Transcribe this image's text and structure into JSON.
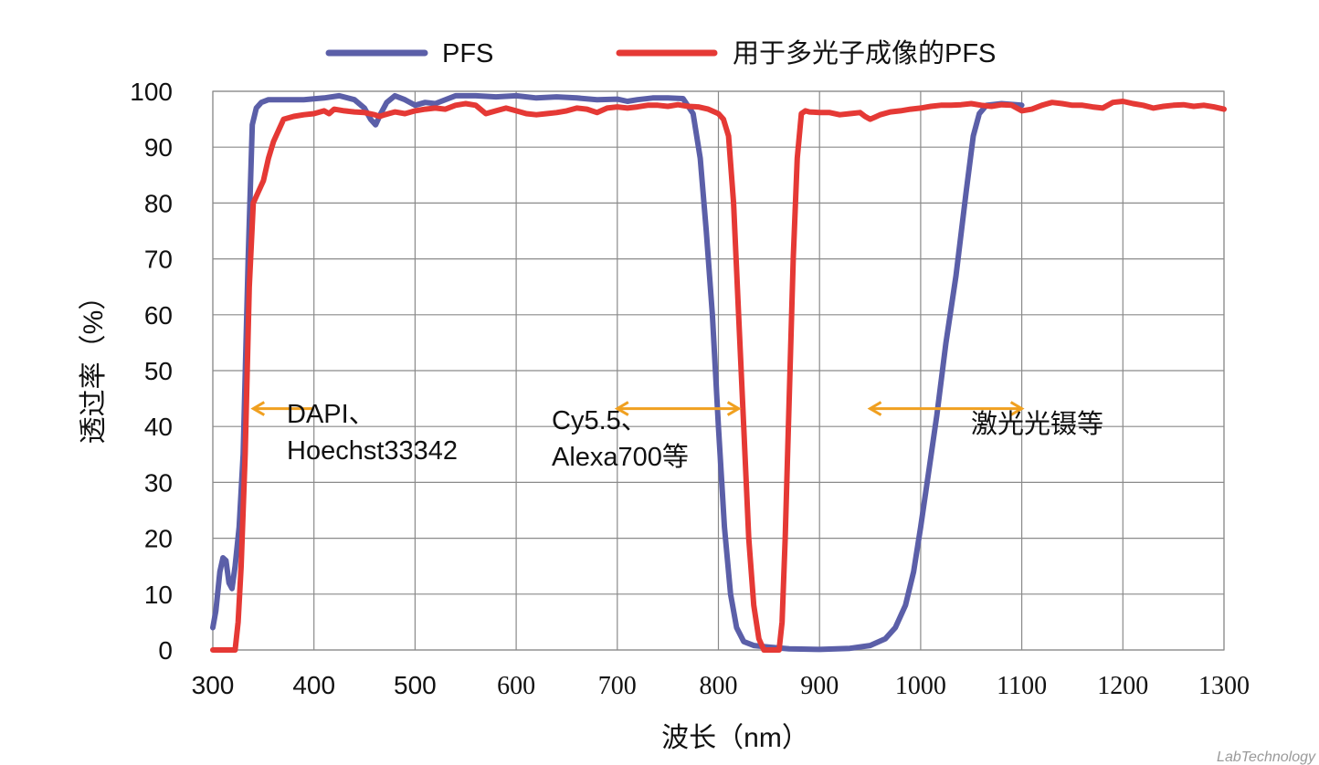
{
  "chart_data": {
    "type": "line",
    "xlabel": "波长（nm）",
    "ylabel": "透过率（%）",
    "xlim": [
      300,
      1300
    ],
    "ylim": [
      0,
      100
    ],
    "grid": true,
    "legend_position": "top",
    "x_ticks": [
      {
        "value": 300,
        "label": "300",
        "style": "sans"
      },
      {
        "value": 400,
        "label": "400",
        "style": "sans"
      },
      {
        "value": 500,
        "label": "500",
        "style": "sans"
      },
      {
        "value": 600,
        "label": "600",
        "style": "serif"
      },
      {
        "value": 700,
        "label": "700",
        "style": "serif"
      },
      {
        "value": 800,
        "label": "800",
        "style": "serif"
      },
      {
        "value": 900,
        "label": "900",
        "style": "serif"
      },
      {
        "value": 1000,
        "label": "1000",
        "style": "serif"
      },
      {
        "value": 1100,
        "label": "1100",
        "style": "serif"
      },
      {
        "value": 1200,
        "label": "1200",
        "style": "serif"
      },
      {
        "value": 1300,
        "label": "1300",
        "style": "serif"
      }
    ],
    "y_ticks": [
      0,
      10,
      20,
      30,
      40,
      50,
      60,
      70,
      80,
      90,
      100
    ],
    "series": [
      {
        "name": "PFS",
        "color": "#5b5fa8",
        "points": [
          [
            300,
            4
          ],
          [
            303,
            7
          ],
          [
            307,
            14
          ],
          [
            310,
            16.5
          ],
          [
            313,
            16
          ],
          [
            316,
            12
          ],
          [
            319,
            11
          ],
          [
            322,
            15
          ],
          [
            326,
            22
          ],
          [
            330,
            35
          ],
          [
            335,
            70
          ],
          [
            339,
            94
          ],
          [
            343,
            97
          ],
          [
            348,
            98
          ],
          [
            355,
            98.5
          ],
          [
            370,
            98.5
          ],
          [
            390,
            98.5
          ],
          [
            410,
            98.8
          ],
          [
            425,
            99.2
          ],
          [
            440,
            98.5
          ],
          [
            450,
            97
          ],
          [
            456,
            95
          ],
          [
            461,
            94
          ],
          [
            466,
            96
          ],
          [
            472,
            98
          ],
          [
            480,
            99.2
          ],
          [
            490,
            98.5
          ],
          [
            500,
            97.5
          ],
          [
            510,
            98
          ],
          [
            520,
            97.8
          ],
          [
            540,
            99.2
          ],
          [
            560,
            99.2
          ],
          [
            580,
            99
          ],
          [
            600,
            99.2
          ],
          [
            620,
            98.8
          ],
          [
            640,
            99
          ],
          [
            660,
            98.8
          ],
          [
            680,
            98.5
          ],
          [
            700,
            98.6
          ],
          [
            710,
            98.2
          ],
          [
            720,
            98.5
          ],
          [
            735,
            98.8
          ],
          [
            750,
            98.8
          ],
          [
            765,
            98.7
          ],
          [
            775,
            96
          ],
          [
            782,
            88
          ],
          [
            788,
            75
          ],
          [
            794,
            60
          ],
          [
            800,
            40
          ],
          [
            806,
            22
          ],
          [
            812,
            10
          ],
          [
            818,
            4
          ],
          [
            825,
            1.5
          ],
          [
            835,
            0.8
          ],
          [
            850,
            0.5
          ],
          [
            870,
            0.2
          ],
          [
            900,
            0.1
          ],
          [
            930,
            0.3
          ],
          [
            950,
            0.8
          ],
          [
            965,
            2
          ],
          [
            975,
            4
          ],
          [
            985,
            8
          ],
          [
            993,
            14
          ],
          [
            1000,
            22
          ],
          [
            1008,
            32
          ],
          [
            1016,
            42
          ],
          [
            1025,
            55
          ],
          [
            1035,
            67
          ],
          [
            1045,
            82
          ],
          [
            1052,
            92
          ],
          [
            1058,
            96
          ],
          [
            1065,
            97.5
          ],
          [
            1080,
            97.8
          ],
          [
            1100,
            97.5
          ]
        ]
      },
      {
        "name": "用于多光子成像的PFS",
        "color": "#e53935",
        "points": [
          [
            300,
            0
          ],
          [
            310,
            0
          ],
          [
            318,
            0
          ],
          [
            322,
            0
          ],
          [
            325,
            5
          ],
          [
            328,
            15
          ],
          [
            332,
            35
          ],
          [
            336,
            65
          ],
          [
            340,
            80
          ],
          [
            345,
            82
          ],
          [
            350,
            84
          ],
          [
            355,
            88
          ],
          [
            360,
            91
          ],
          [
            365,
            93
          ],
          [
            370,
            95
          ],
          [
            380,
            95.5
          ],
          [
            390,
            95.8
          ],
          [
            400,
            96
          ],
          [
            410,
            96.5
          ],
          [
            415,
            96
          ],
          [
            420,
            96.8
          ],
          [
            430,
            96.5
          ],
          [
            440,
            96.3
          ],
          [
            450,
            96.2
          ],
          [
            460,
            95.8
          ],
          [
            465,
            95.5
          ],
          [
            470,
            95.8
          ],
          [
            480,
            96.3
          ],
          [
            490,
            96
          ],
          [
            500,
            96.5
          ],
          [
            510,
            96.8
          ],
          [
            520,
            97
          ],
          [
            530,
            96.8
          ],
          [
            540,
            97.5
          ],
          [
            550,
            97.8
          ],
          [
            560,
            97.5
          ],
          [
            570,
            96
          ],
          [
            580,
            96.5
          ],
          [
            590,
            97
          ],
          [
            600,
            96.5
          ],
          [
            610,
            96
          ],
          [
            620,
            95.8
          ],
          [
            630,
            96
          ],
          [
            640,
            96.2
          ],
          [
            650,
            96.5
          ],
          [
            660,
            97
          ],
          [
            670,
            96.8
          ],
          [
            680,
            96.2
          ],
          [
            690,
            97
          ],
          [
            700,
            97.2
          ],
          [
            710,
            97
          ],
          [
            720,
            97.2
          ],
          [
            730,
            97.5
          ],
          [
            740,
            97.5
          ],
          [
            750,
            97.3
          ],
          [
            760,
            97.6
          ],
          [
            770,
            97.3
          ],
          [
            780,
            97.2
          ],
          [
            790,
            96.8
          ],
          [
            800,
            96
          ],
          [
            805,
            95
          ],
          [
            810,
            92
          ],
          [
            815,
            80
          ],
          [
            820,
            60
          ],
          [
            825,
            40
          ],
          [
            830,
            20
          ],
          [
            835,
            8
          ],
          [
            840,
            2
          ],
          [
            845,
            0
          ],
          [
            850,
            0
          ],
          [
            855,
            0
          ],
          [
            860,
            0
          ],
          [
            863,
            5
          ],
          [
            866,
            20
          ],
          [
            870,
            45
          ],
          [
            874,
            70
          ],
          [
            878,
            88
          ],
          [
            882,
            96
          ],
          [
            886,
            96.5
          ],
          [
            890,
            96.3
          ],
          [
            900,
            96.2
          ],
          [
            910,
            96.2
          ],
          [
            920,
            95.8
          ],
          [
            930,
            96
          ],
          [
            940,
            96.2
          ],
          [
            945,
            95.5
          ],
          [
            950,
            95
          ],
          [
            955,
            95.4
          ],
          [
            960,
            95.8
          ],
          [
            970,
            96.3
          ],
          [
            980,
            96.5
          ],
          [
            990,
            96.8
          ],
          [
            1000,
            97
          ],
          [
            1010,
            97.3
          ],
          [
            1020,
            97.5
          ],
          [
            1030,
            97.5
          ],
          [
            1040,
            97.6
          ],
          [
            1050,
            97.8
          ],
          [
            1060,
            97.5
          ],
          [
            1070,
            97.3
          ],
          [
            1080,
            97.6
          ],
          [
            1090,
            97.5
          ],
          [
            1100,
            96.5
          ],
          [
            1110,
            96.8
          ],
          [
            1120,
            97.5
          ],
          [
            1130,
            98
          ],
          [
            1140,
            97.8
          ],
          [
            1150,
            97.5
          ],
          [
            1160,
            97.5
          ],
          [
            1170,
            97.2
          ],
          [
            1180,
            97
          ],
          [
            1190,
            98
          ],
          [
            1200,
            98.2
          ],
          [
            1210,
            97.8
          ],
          [
            1220,
            97.5
          ],
          [
            1230,
            97
          ],
          [
            1240,
            97.3
          ],
          [
            1250,
            97.5
          ],
          [
            1260,
            97.6
          ],
          [
            1270,
            97.3
          ],
          [
            1280,
            97.5
          ],
          [
            1290,
            97.2
          ],
          [
            1300,
            96.8
          ]
        ]
      }
    ],
    "annotations": [
      {
        "id": "dapi",
        "lines": [
          "DAPI、",
          "Hoechst33342"
        ],
        "arrow": {
          "from": 400,
          "to": 340,
          "y": 45,
          "heads": "left"
        }
      },
      {
        "id": "cy55",
        "lines": [
          "Cy5.5、",
          "Alexa700等"
        ],
        "arrow": {
          "from": 700,
          "to": 820,
          "y": 45,
          "heads": "both"
        }
      },
      {
        "id": "laser",
        "lines": [
          "激光光镊等"
        ],
        "arrow": {
          "from": 950,
          "to": 1100,
          "y": 45,
          "heads": "both"
        }
      }
    ],
    "arrow_color": "#f0a020"
  },
  "watermark": "LabTechnology"
}
